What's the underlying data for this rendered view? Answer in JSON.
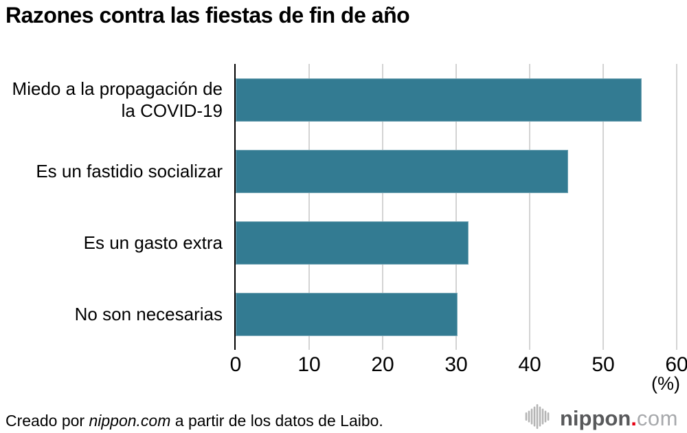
{
  "title": "Razones contra las fiestas de fin de año",
  "chart_data": {
    "type": "bar",
    "orientation": "horizontal",
    "title": "Razones contra las fiestas de fin de año",
    "categories": [
      "Miedo a la propagación de la COVID-19",
      "Es un fastidio socializar",
      "Es un gasto extra",
      "No son necesarias"
    ],
    "values": [
      55.2,
      45.2,
      31.7,
      30.2
    ],
    "xlim": [
      0,
      60
    ],
    "xticks": [
      0,
      10,
      20,
      30,
      40,
      50,
      60
    ],
    "unit_label": "(%)",
    "xlabel": "(%)",
    "ylabel": "",
    "grid": true,
    "legend": "none",
    "bar_color": "#337b92",
    "gridline_color": "#d3d3d3"
  },
  "footer": {
    "prefix": "Creado por ",
    "source_name": "nippon.com",
    "suffix": " a partir de los datos de Laibo."
  },
  "logo": {
    "name": "nippon",
    "dot": ".",
    "tld": "com",
    "icon": "soundwave-bars-icon",
    "colors": {
      "name": "#58595b",
      "dot": "#e60012",
      "tld": "#a7a9ac",
      "icon": "#b5b5b5"
    }
  }
}
